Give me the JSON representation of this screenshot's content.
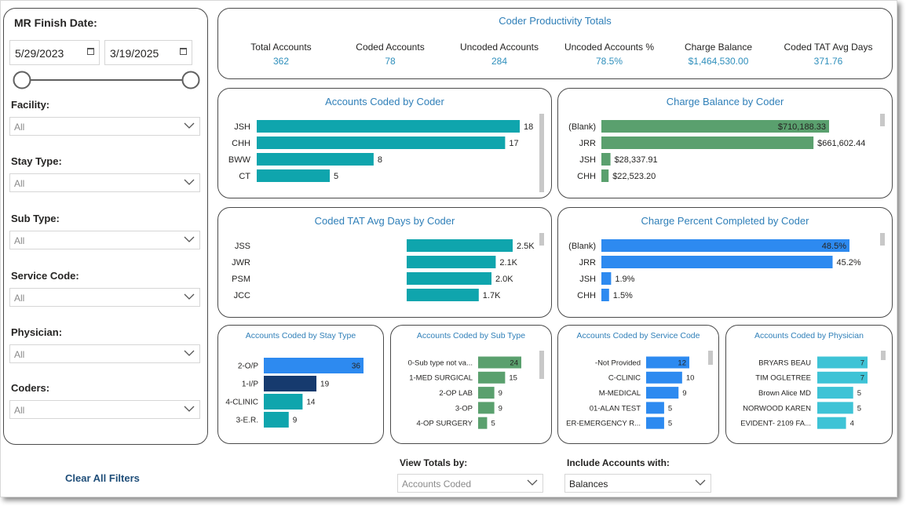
{
  "filters": {
    "mr_finish_date_label": "MR Finish Date:",
    "start_date": "5/29/2023",
    "end_date": "3/19/2025",
    "facility_label": "Facility:",
    "facility_value": "All",
    "stay_type_label": "Stay Type:",
    "stay_type_value": "All",
    "sub_type_label": "Sub Type:",
    "sub_type_value": "All",
    "service_code_label": "Service Code:",
    "service_code_value": "All",
    "physician_label": "Physician:",
    "physician_value": "All",
    "coders_label": "Coders:",
    "coders_value": "All",
    "clear_all": "Clear All Filters"
  },
  "totals": {
    "title": "Coder Productivity Totals",
    "items": [
      {
        "label": "Total Accounts",
        "value": "362"
      },
      {
        "label": "Coded Accounts",
        "value": "78"
      },
      {
        "label": "Uncoded Accounts",
        "value": "284"
      },
      {
        "label": "Uncoded Accounts %",
        "value": "78.5%"
      },
      {
        "label": "Charge Balance",
        "value": "$1,464,530.00"
      },
      {
        "label": "Coded TAT Avg Days",
        "value": "371.76"
      }
    ]
  },
  "bottom": {
    "view_totals_label": "View Totals by:",
    "view_totals_value": "Accounts Coded",
    "include_label": "Include Accounts with:",
    "include_value": "Balances"
  },
  "colors": {
    "teal": "#0fa5ad",
    "green": "#5aa06e",
    "blue": "#2d8af0",
    "navy": "#163a6e",
    "lightblue": "#3ec3d6",
    "title": "#2f7fb8"
  },
  "chart_data": [
    {
      "id": "coded_by_coder",
      "type": "bar",
      "orientation": "horizontal",
      "title": "Accounts Coded by Coder",
      "categories": [
        "JSH",
        "CHH",
        "BWW",
        "CT"
      ],
      "values": [
        18,
        17,
        8,
        5
      ],
      "labels": [
        "18",
        "17",
        "8",
        "5"
      ],
      "xlim": [
        0,
        18
      ]
    },
    {
      "id": "charge_by_coder",
      "type": "bar",
      "orientation": "horizontal",
      "title": "Charge Balance by Coder",
      "categories": [
        "(Blank)",
        "JRR",
        "JSH",
        "CHH"
      ],
      "values": [
        710188.33,
        661602.44,
        28337.91,
        22523.2
      ],
      "labels": [
        "$710,188.33",
        "$661,602.44",
        "$28,337.91",
        "$22,523.20"
      ],
      "xlim": [
        0,
        710188.33
      ]
    },
    {
      "id": "tat_by_coder",
      "type": "bar",
      "orientation": "horizontal",
      "title": "Coded TAT Avg Days by Coder",
      "categories": [
        "JSS",
        "JWR",
        "PSM",
        "JCC"
      ],
      "values": [
        2500,
        2100,
        2000,
        1700
      ],
      "labels": [
        "2.5K",
        "2.1K",
        "2.0K",
        "1.7K"
      ],
      "xlim": [
        0,
        2500
      ]
    },
    {
      "id": "pct_by_coder",
      "type": "bar",
      "orientation": "horizontal",
      "title": "Charge Percent Completed by Coder",
      "categories": [
        "(Blank)",
        "JRR",
        "JSH",
        "CHH"
      ],
      "values": [
        48.5,
        45.2,
        1.9,
        1.5
      ],
      "labels": [
        "48.5%",
        "45.2%",
        "1.9%",
        "1.5%"
      ],
      "xlim": [
        0,
        48.5
      ]
    },
    {
      "id": "by_stay_type",
      "type": "bar",
      "orientation": "horizontal",
      "title": "Accounts Coded by Stay Type",
      "categories": [
        "2-O/P",
        "1-I/P",
        "4-CLINIC",
        "3-E.R."
      ],
      "values": [
        36,
        19,
        14,
        9
      ],
      "labels": [
        "36",
        "19",
        "14",
        "9"
      ],
      "xlim": [
        0,
        36
      ]
    },
    {
      "id": "by_sub_type",
      "type": "bar",
      "orientation": "horizontal",
      "title": "Accounts Coded by Sub Type",
      "categories": [
        "0-Sub type not va...",
        "1-MED SURGICAL",
        "2-OP LAB",
        "3-OP",
        "4-OP SURGERY"
      ],
      "values": [
        24,
        15,
        9,
        9,
        5
      ],
      "labels": [
        "24",
        "15",
        "9",
        "9",
        "5"
      ],
      "xlim": [
        0,
        24
      ]
    },
    {
      "id": "by_service_code",
      "type": "bar",
      "orientation": "horizontal",
      "title": "Accounts Coded by Service Code",
      "categories": [
        "-Not Provided",
        "C-CLINIC",
        "M-MEDICAL",
        "01-ALAN TEST",
        "ER-EMERGENCY R..."
      ],
      "values": [
        12,
        10,
        9,
        5,
        5
      ],
      "labels": [
        "12",
        "10",
        "9",
        "5",
        "5"
      ],
      "xlim": [
        0,
        12
      ]
    },
    {
      "id": "by_physician",
      "type": "bar",
      "orientation": "horizontal",
      "title": "Accounts Coded by Physician",
      "categories": [
        "BRYARS BEAU",
        "TIM OGLETREE",
        "Brown Alice MD",
        "NORWOOD KAREN",
        "EVIDENT- 2109 FA..."
      ],
      "values": [
        7,
        7,
        5,
        5,
        4
      ],
      "labels": [
        "7",
        "7",
        "5",
        "5",
        "4"
      ],
      "xlim": [
        0,
        7
      ]
    }
  ]
}
